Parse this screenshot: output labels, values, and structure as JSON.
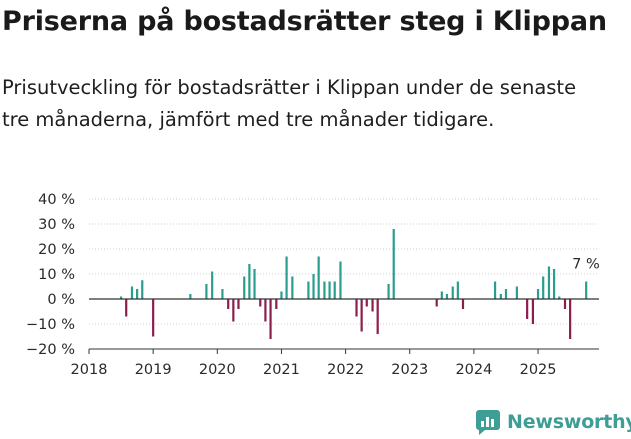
{
  "title": "Priserna på bostadsrätter steg i Klippan",
  "subtitle": "Prisutveckling för bostadsrätter i Klippan under de senaste tre månaderna, jämfört med tre månader tidigare.",
  "brand": {
    "name": "Newsworthy"
  },
  "colors": {
    "positive": "#2a9d8f",
    "negative": "#8c1e4d",
    "axis": "#333333",
    "grid": "#cfcfcf"
  },
  "chart_data": {
    "type": "bar",
    "title": "Priserna på bostadsrätter steg i Klippan",
    "xlabel": "",
    "ylabel": "",
    "ylim": [
      -20,
      40
    ],
    "xlim": [
      2018.0,
      2025.95
    ],
    "y_ticks": [
      40,
      30,
      20,
      10,
      0,
      -10,
      -20
    ],
    "y_tick_labels": [
      "40 %",
      "30 %",
      "20 %",
      "10 %",
      "0 %",
      "−10 %",
      "−20 %"
    ],
    "x_ticks": [
      2018,
      2019,
      2020,
      2021,
      2022,
      2023,
      2024,
      2025
    ],
    "x_tick_labels": [
      "2018",
      "2019",
      "2020",
      "2021",
      "2022",
      "2023",
      "2024",
      "2025"
    ],
    "annotation": {
      "text": "7 %",
      "x": 2025.75,
      "y": 7
    },
    "series": [
      {
        "name": "Prisutveckling",
        "x": [
          2018.5,
          2018.58,
          2018.67,
          2018.75,
          2018.83,
          2019.0,
          2019.58,
          2019.83,
          2019.92,
          2020.08,
          2020.17,
          2020.25,
          2020.33,
          2020.42,
          2020.5,
          2020.58,
          2020.67,
          2020.75,
          2020.83,
          2020.92,
          2021.0,
          2021.08,
          2021.17,
          2021.25,
          2021.42,
          2021.5,
          2021.58,
          2021.67,
          2021.75,
          2021.83,
          2021.92,
          2022.17,
          2022.25,
          2022.33,
          2022.42,
          2022.5,
          2022.67,
          2022.75,
          2023.42,
          2023.5,
          2023.58,
          2023.67,
          2023.75,
          2023.83,
          2024.33,
          2024.42,
          2024.5,
          2024.67,
          2024.83,
          2024.92,
          2025.0,
          2025.08,
          2025.17,
          2025.25,
          2025.33,
          2025.42,
          2025.5,
          2025.75
        ],
        "values": [
          1,
          -7,
          5,
          4,
          7.5,
          -15,
          2,
          6,
          11,
          4,
          -4,
          -9,
          -4,
          9,
          14,
          12,
          -3,
          -9,
          -16,
          -4,
          3,
          17,
          9,
          0,
          7,
          10,
          17,
          7,
          7,
          7,
          15,
          -7,
          -13,
          -3,
          -5,
          -14,
          6,
          28,
          -3,
          3,
          2,
          5,
          7,
          -4,
          7,
          2,
          4,
          5,
          -8,
          -10,
          4,
          9,
          13,
          12,
          1,
          -4,
          -16,
          7
        ]
      }
    ]
  }
}
